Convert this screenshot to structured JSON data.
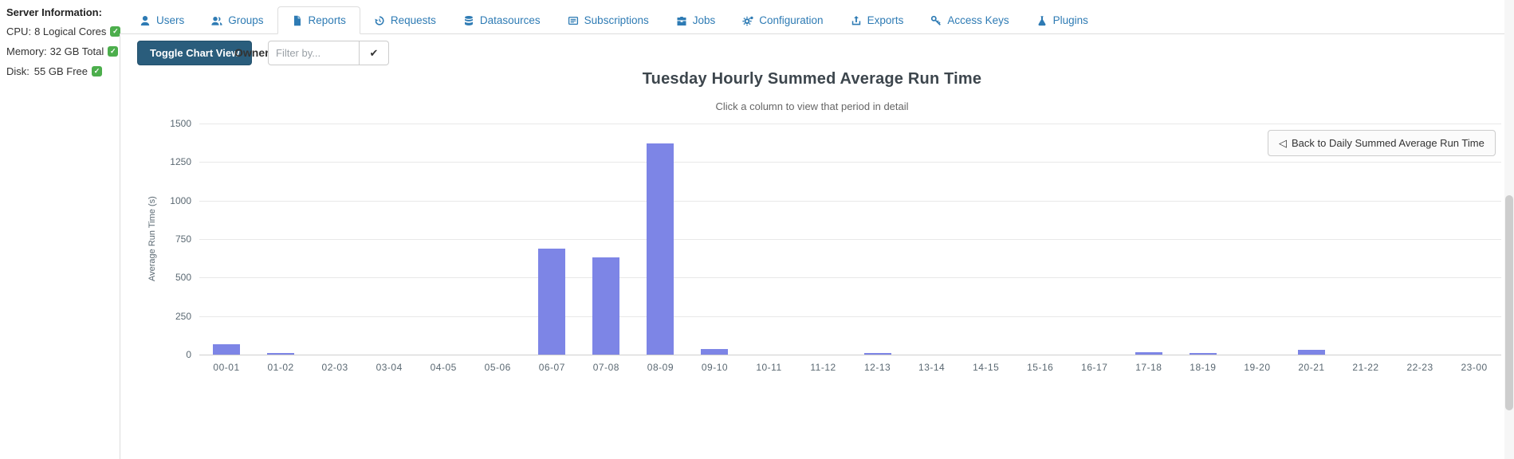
{
  "sidebar": {
    "title": "Server Information:",
    "rows": [
      {
        "label": "CPU:",
        "value": "8 Logical Cores",
        "status_icon": "check-badge",
        "status_ok": "✓"
      },
      {
        "label": "Memory:",
        "value": "32 GB Total",
        "status_icon": "check-badge",
        "status_ok": "✓"
      },
      {
        "label": "Disk:",
        "value": "55 GB Free",
        "status_icon": "check-badge",
        "status_ok": "✓"
      }
    ],
    "status_color": "#4cae4c"
  },
  "tabs": {
    "accent_color": "#2e7bb4",
    "items": [
      {
        "label": "Users",
        "icon": "user-icon",
        "active": false
      },
      {
        "label": "Groups",
        "icon": "users-icon",
        "active": false
      },
      {
        "label": "Reports",
        "icon": "file-icon",
        "active": true
      },
      {
        "label": "Requests",
        "icon": "history-icon",
        "active": false
      },
      {
        "label": "Datasources",
        "icon": "database-icon",
        "active": false
      },
      {
        "label": "Subscriptions",
        "icon": "subscriptions-icon",
        "active": false
      },
      {
        "label": "Jobs",
        "icon": "briefcase-icon",
        "active": false
      },
      {
        "label": "Configuration",
        "icon": "gears-icon",
        "active": false
      },
      {
        "label": "Exports",
        "icon": "export-icon",
        "active": false
      },
      {
        "label": "Access Keys",
        "icon": "key-icon",
        "active": false
      },
      {
        "label": "Plugins",
        "icon": "flask-icon",
        "active": false
      }
    ]
  },
  "toolbar": {
    "toggle_button_label": "Toggle Chart View",
    "toggle_button_color": "#2a5d7c",
    "owner_label": "Owner",
    "filter_placeholder": "Filter by...",
    "apply_icon": "check-icon",
    "apply_glyph": "✔"
  },
  "back_button": {
    "icon": "back-triangle-icon",
    "glyph": "◁",
    "label": "Back to Daily Summed Average Run Time"
  },
  "chart_data": {
    "type": "bar",
    "title": "Tuesday Hourly Summed Average Run Time",
    "subtitle": "Click a column to view that period in detail",
    "xlabel": "",
    "ylabel": "Average Run Time (s)",
    "ylim": [
      0,
      1500
    ],
    "yticks": [
      0,
      250,
      500,
      750,
      1000,
      1250,
      1500
    ],
    "grid": true,
    "legend": "none",
    "bar_color": "#7d85e6",
    "categories": [
      "00-01",
      "01-02",
      "02-03",
      "03-04",
      "04-05",
      "05-06",
      "06-07",
      "07-08",
      "08-09",
      "09-10",
      "10-11",
      "11-12",
      "12-13",
      "13-14",
      "14-15",
      "15-16",
      "16-17",
      "17-18",
      "18-19",
      "19-20",
      "20-21",
      "21-22",
      "22-23",
      "23-00"
    ],
    "values": [
      65,
      10,
      0,
      0,
      0,
      0,
      690,
      630,
      1370,
      36,
      0,
      0,
      7,
      0,
      0,
      0,
      0,
      15,
      9,
      0,
      33,
      0,
      0,
      0
    ]
  }
}
